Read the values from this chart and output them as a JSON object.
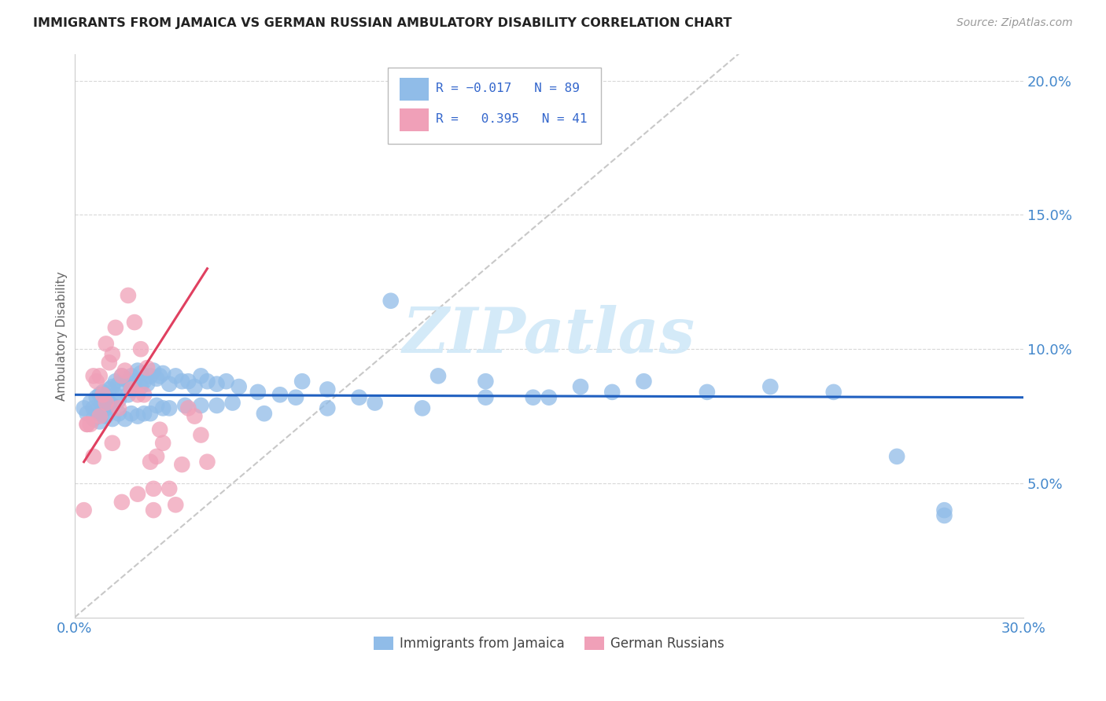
{
  "title": "IMMIGRANTS FROM JAMAICA VS GERMAN RUSSIAN AMBULATORY DISABILITY CORRELATION CHART",
  "source": "Source: ZipAtlas.com",
  "ylabel": "Ambulatory Disability",
  "xlim": [
    0.0,
    0.3
  ],
  "ylim": [
    0.0,
    0.21
  ],
  "yticks": [
    0.05,
    0.1,
    0.15,
    0.2
  ],
  "ytick_labels": [
    "5.0%",
    "10.0%",
    "15.0%",
    "20.0%"
  ],
  "color_jamaica": "#90bce8",
  "color_german": "#f0a0b8",
  "color_jamaica_line": "#2060c0",
  "color_german_line": "#e04060",
  "color_diag_line": "#c8c8c8",
  "color_tick_labels": "#4488cc",
  "color_grid": "#d8d8d8",
  "watermark_color": "#d0e8f8",
  "jamaica_x": [
    0.003,
    0.004,
    0.005,
    0.006,
    0.007,
    0.007,
    0.008,
    0.008,
    0.009,
    0.009,
    0.01,
    0.01,
    0.011,
    0.011,
    0.012,
    0.012,
    0.013,
    0.013,
    0.014,
    0.014,
    0.015,
    0.016,
    0.017,
    0.017,
    0.018,
    0.018,
    0.019,
    0.02,
    0.021,
    0.021,
    0.022,
    0.023,
    0.024,
    0.025,
    0.026,
    0.027,
    0.028,
    0.03,
    0.032,
    0.034,
    0.036,
    0.038,
    0.04,
    0.042,
    0.045,
    0.048,
    0.052,
    0.058,
    0.065,
    0.072,
    0.08,
    0.09,
    0.1,
    0.115,
    0.13,
    0.145,
    0.16,
    0.18,
    0.2,
    0.22,
    0.24,
    0.26,
    0.275,
    0.006,
    0.008,
    0.01,
    0.012,
    0.014,
    0.016,
    0.018,
    0.02,
    0.022,
    0.024,
    0.026,
    0.028,
    0.03,
    0.035,
    0.04,
    0.045,
    0.05,
    0.06,
    0.07,
    0.08,
    0.095,
    0.11,
    0.13,
    0.15,
    0.17,
    0.275
  ],
  "jamaica_y": [
    0.078,
    0.076,
    0.08,
    0.078,
    0.077,
    0.082,
    0.076,
    0.083,
    0.079,
    0.084,
    0.078,
    0.082,
    0.08,
    0.085,
    0.079,
    0.086,
    0.083,
    0.088,
    0.081,
    0.087,
    0.09,
    0.089,
    0.088,
    0.083,
    0.09,
    0.085,
    0.088,
    0.092,
    0.091,
    0.086,
    0.088,
    0.087,
    0.09,
    0.092,
    0.089,
    0.09,
    0.091,
    0.087,
    0.09,
    0.088,
    0.088,
    0.086,
    0.09,
    0.088,
    0.087,
    0.088,
    0.086,
    0.084,
    0.083,
    0.088,
    0.085,
    0.082,
    0.118,
    0.09,
    0.088,
    0.082,
    0.086,
    0.088,
    0.084,
    0.086,
    0.084,
    0.06,
    0.04,
    0.074,
    0.073,
    0.075,
    0.074,
    0.076,
    0.074,
    0.076,
    0.075,
    0.076,
    0.076,
    0.079,
    0.078,
    0.078,
    0.079,
    0.079,
    0.079,
    0.08,
    0.076,
    0.082,
    0.078,
    0.08,
    0.078,
    0.082,
    0.082,
    0.084,
    0.038
  ],
  "german_x": [
    0.003,
    0.004,
    0.005,
    0.006,
    0.007,
    0.008,
    0.009,
    0.01,
    0.011,
    0.012,
    0.013,
    0.014,
    0.015,
    0.016,
    0.017,
    0.018,
    0.019,
    0.02,
    0.021,
    0.022,
    0.023,
    0.024,
    0.025,
    0.026,
    0.027,
    0.028,
    0.03,
    0.032,
    0.034,
    0.036,
    0.038,
    0.04,
    0.042,
    0.004,
    0.006,
    0.008,
    0.01,
    0.012,
    0.015,
    0.02,
    0.025
  ],
  "german_y": [
    0.04,
    0.072,
    0.072,
    0.09,
    0.088,
    0.09,
    0.083,
    0.102,
    0.095,
    0.098,
    0.108,
    0.078,
    0.09,
    0.092,
    0.12,
    0.085,
    0.11,
    0.083,
    0.1,
    0.083,
    0.093,
    0.058,
    0.048,
    0.06,
    0.07,
    0.065,
    0.048,
    0.042,
    0.057,
    0.078,
    0.075,
    0.068,
    0.058,
    0.072,
    0.06,
    0.075,
    0.08,
    0.065,
    0.043,
    0.046,
    0.04
  ],
  "jamaica_line_x": [
    0.0,
    0.3
  ],
  "jamaica_line_y": [
    0.083,
    0.082
  ],
  "german_line_x": [
    0.003,
    0.042
  ],
  "german_line_y": [
    0.058,
    0.13
  ],
  "diag_line_x": [
    0.0,
    0.21
  ],
  "diag_line_y": [
    0.0,
    0.21
  ]
}
